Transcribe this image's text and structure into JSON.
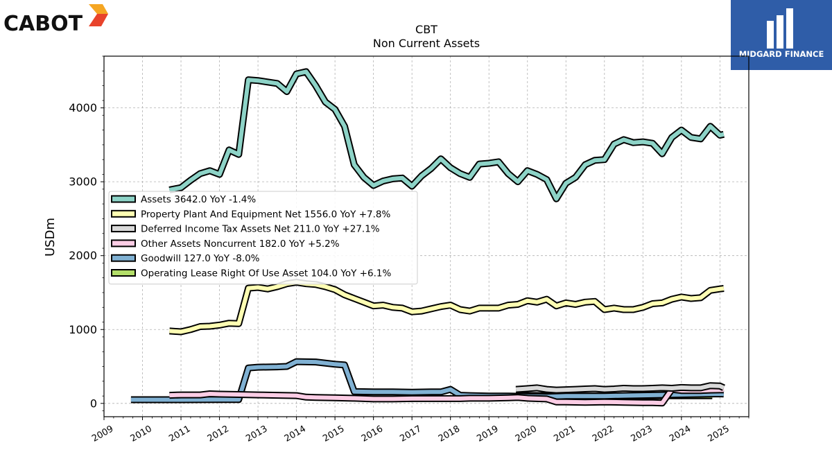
{
  "branding": {
    "left_logo_text": "CABOT",
    "right_logo_text": "MIDGARD FINANCE",
    "right_logo_color": "#2f5da8"
  },
  "chart_data": {
    "type": "line",
    "title": "CBT",
    "subtitle": "Non Current  Assets",
    "ylabel": "USDm",
    "xlabel": "",
    "xlim": [
      2009.0,
      2025.75
    ],
    "ylim": [
      -180,
      4700
    ],
    "yticks": [
      0,
      1000,
      2000,
      3000,
      4000
    ],
    "xticks": [
      "2009",
      "2010",
      "2011",
      "2012",
      "2013",
      "2014",
      "2015",
      "2016",
      "2017",
      "2018",
      "2019",
      "2020",
      "2021",
      "2022",
      "2023",
      "2024",
      "2025"
    ],
    "grid": true,
    "legend_position": "center-left",
    "series": [
      {
        "name": "Assets  3642.0 YoY -1.4%",
        "color": "#8dd3c7",
        "points": [
          [
            2010.7,
            2890
          ],
          [
            2011.0,
            2920
          ],
          [
            2011.25,
            3020
          ],
          [
            2011.5,
            3110
          ],
          [
            2011.75,
            3150
          ],
          [
            2012.0,
            3100
          ],
          [
            2012.25,
            3430
          ],
          [
            2012.5,
            3370
          ],
          [
            2012.75,
            4380
          ],
          [
            2013.0,
            4370
          ],
          [
            2013.25,
            4350
          ],
          [
            2013.5,
            4330
          ],
          [
            2013.75,
            4220
          ],
          [
            2014.0,
            4460
          ],
          [
            2014.25,
            4490
          ],
          [
            2014.5,
            4300
          ],
          [
            2014.75,
            4080
          ],
          [
            2015.0,
            3980
          ],
          [
            2015.25,
            3750
          ],
          [
            2015.5,
            3230
          ],
          [
            2015.75,
            3060
          ],
          [
            2016.0,
            2950
          ],
          [
            2016.25,
            3010
          ],
          [
            2016.5,
            3040
          ],
          [
            2016.75,
            3050
          ],
          [
            2017.0,
            2940
          ],
          [
            2017.25,
            3080
          ],
          [
            2017.5,
            3180
          ],
          [
            2017.75,
            3310
          ],
          [
            2018.0,
            3190
          ],
          [
            2018.25,
            3110
          ],
          [
            2018.5,
            3060
          ],
          [
            2018.75,
            3240
          ],
          [
            2019.0,
            3250
          ],
          [
            2019.25,
            3270
          ],
          [
            2019.5,
            3110
          ],
          [
            2019.75,
            3000
          ],
          [
            2020.0,
            3150
          ],
          [
            2020.25,
            3100
          ],
          [
            2020.5,
            3030
          ],
          [
            2020.75,
            2770
          ],
          [
            2021.0,
            2980
          ],
          [
            2021.25,
            3060
          ],
          [
            2021.5,
            3230
          ],
          [
            2021.75,
            3290
          ],
          [
            2022.0,
            3300
          ],
          [
            2022.25,
            3510
          ],
          [
            2022.5,
            3570
          ],
          [
            2022.75,
            3530
          ],
          [
            2023.0,
            3540
          ],
          [
            2023.25,
            3520
          ],
          [
            2023.5,
            3380
          ],
          [
            2023.75,
            3600
          ],
          [
            2024.0,
            3700
          ],
          [
            2024.25,
            3600
          ],
          [
            2024.5,
            3580
          ],
          [
            2024.75,
            3750
          ],
          [
            2025.0,
            3630
          ],
          [
            2025.1,
            3642
          ]
        ]
      },
      {
        "name": "Property Plant And Equipment Net  1556.0 YoY +7.8%",
        "color": "#ffffb3",
        "points": [
          [
            2010.7,
            980
          ],
          [
            2011.0,
            970
          ],
          [
            2011.25,
            1000
          ],
          [
            2011.5,
            1040
          ],
          [
            2011.75,
            1045
          ],
          [
            2012.0,
            1060
          ],
          [
            2012.25,
            1085
          ],
          [
            2012.5,
            1080
          ],
          [
            2012.75,
            1560
          ],
          [
            2013.0,
            1570
          ],
          [
            2013.25,
            1550
          ],
          [
            2013.5,
            1580
          ],
          [
            2013.75,
            1620
          ],
          [
            2014.0,
            1640
          ],
          [
            2014.25,
            1620
          ],
          [
            2014.5,
            1610
          ],
          [
            2014.75,
            1580
          ],
          [
            2015.0,
            1540
          ],
          [
            2015.25,
            1470
          ],
          [
            2015.5,
            1420
          ],
          [
            2015.75,
            1370
          ],
          [
            2016.0,
            1320
          ],
          [
            2016.25,
            1330
          ],
          [
            2016.5,
            1300
          ],
          [
            2016.75,
            1290
          ],
          [
            2017.0,
            1240
          ],
          [
            2017.25,
            1250
          ],
          [
            2017.5,
            1280
          ],
          [
            2017.75,
            1310
          ],
          [
            2018.0,
            1330
          ],
          [
            2018.25,
            1270
          ],
          [
            2018.5,
            1250
          ],
          [
            2018.75,
            1290
          ],
          [
            2019.0,
            1290
          ],
          [
            2019.25,
            1290
          ],
          [
            2019.5,
            1330
          ],
          [
            2019.75,
            1340
          ],
          [
            2020.0,
            1390
          ],
          [
            2020.25,
            1370
          ],
          [
            2020.5,
            1410
          ],
          [
            2020.75,
            1320
          ],
          [
            2021.0,
            1360
          ],
          [
            2021.25,
            1340
          ],
          [
            2021.5,
            1370
          ],
          [
            2021.75,
            1380
          ],
          [
            2022.0,
            1270
          ],
          [
            2022.25,
            1290
          ],
          [
            2022.5,
            1270
          ],
          [
            2022.75,
            1270
          ],
          [
            2023.0,
            1300
          ],
          [
            2023.25,
            1350
          ],
          [
            2023.5,
            1360
          ],
          [
            2023.75,
            1410
          ],
          [
            2024.0,
            1440
          ],
          [
            2024.25,
            1420
          ],
          [
            2024.5,
            1430
          ],
          [
            2024.75,
            1530
          ],
          [
            2025.0,
            1550
          ],
          [
            2025.1,
            1556
          ]
        ]
      },
      {
        "name": "Deferred Income Tax Assets Net  211.0 YoY +27.1%",
        "color": "#d9d9d9",
        "points": [
          [
            2019.7,
            190
          ],
          [
            2020.0,
            200
          ],
          [
            2020.25,
            210
          ],
          [
            2020.5,
            190
          ],
          [
            2020.75,
            180
          ],
          [
            2021.0,
            185
          ],
          [
            2021.25,
            190
          ],
          [
            2021.5,
            195
          ],
          [
            2021.75,
            200
          ],
          [
            2022.0,
            190
          ],
          [
            2022.25,
            195
          ],
          [
            2022.5,
            205
          ],
          [
            2022.75,
            200
          ],
          [
            2023.0,
            200
          ],
          [
            2023.25,
            205
          ],
          [
            2023.5,
            210
          ],
          [
            2023.75,
            205
          ],
          [
            2024.0,
            215
          ],
          [
            2024.25,
            210
          ],
          [
            2024.5,
            210
          ],
          [
            2024.75,
            240
          ],
          [
            2025.0,
            235
          ],
          [
            2025.1,
            211
          ]
        ]
      },
      {
        "name": "Other Assets Noncurrent  182.0 YoY +5.2%",
        "color": "#fccde5",
        "points": [
          [
            2010.7,
            110
          ],
          [
            2011.0,
            115
          ],
          [
            2011.5,
            115
          ],
          [
            2011.75,
            130
          ],
          [
            2012.0,
            125
          ],
          [
            2012.5,
            120
          ],
          [
            2013.0,
            115
          ],
          [
            2013.5,
            110
          ],
          [
            2014.0,
            105
          ],
          [
            2014.25,
            85
          ],
          [
            2014.5,
            80
          ],
          [
            2015.0,
            75
          ],
          [
            2015.5,
            70
          ],
          [
            2016.0,
            60
          ],
          [
            2016.5,
            60
          ],
          [
            2017.0,
            65
          ],
          [
            2017.5,
            65
          ],
          [
            2018.0,
            65
          ],
          [
            2018.25,
            65
          ],
          [
            2018.5,
            70
          ],
          [
            2018.75,
            70
          ],
          [
            2019.0,
            70
          ],
          [
            2019.5,
            75
          ],
          [
            2019.75,
            80
          ],
          [
            2020.0,
            70
          ],
          [
            2020.5,
            60
          ],
          [
            2020.75,
            20
          ],
          [
            2021.0,
            20
          ],
          [
            2021.5,
            15
          ],
          [
            2022.0,
            20
          ],
          [
            2022.5,
            15
          ],
          [
            2023.0,
            10
          ],
          [
            2023.25,
            10
          ],
          [
            2023.5,
            5
          ],
          [
            2023.75,
            190
          ],
          [
            2024.0,
            175
          ],
          [
            2024.5,
            175
          ],
          [
            2024.75,
            180
          ],
          [
            2025.0,
            182
          ],
          [
            2025.1,
            182
          ]
        ]
      },
      {
        "name": "Goodwill  127.0 YoY -8.0%",
        "color": "#80b1d3",
        "points": [
          [
            2009.7,
            50
          ],
          [
            2011.0,
            50
          ],
          [
            2012.0,
            52
          ],
          [
            2012.5,
            52
          ],
          [
            2012.75,
            480
          ],
          [
            2013.0,
            490
          ],
          [
            2013.5,
            495
          ],
          [
            2013.75,
            500
          ],
          [
            2014.0,
            565
          ],
          [
            2014.5,
            560
          ],
          [
            2015.0,
            530
          ],
          [
            2015.25,
            520
          ],
          [
            2015.5,
            160
          ],
          [
            2016.0,
            155
          ],
          [
            2016.5,
            155
          ],
          [
            2017.0,
            150
          ],
          [
            2017.5,
            155
          ],
          [
            2017.75,
            155
          ],
          [
            2018.0,
            190
          ],
          [
            2018.25,
            110
          ],
          [
            2018.5,
            105
          ],
          [
            2019.0,
            100
          ],
          [
            2019.5,
            100
          ],
          [
            2020.0,
            95
          ],
          [
            2020.5,
            90
          ],
          [
            2021.0,
            100
          ],
          [
            2021.5,
            100
          ],
          [
            2022.0,
            100
          ],
          [
            2022.5,
            105
          ],
          [
            2023.0,
            110
          ],
          [
            2023.5,
            115
          ],
          [
            2024.0,
            120
          ],
          [
            2024.5,
            125
          ],
          [
            2025.0,
            130
          ],
          [
            2025.1,
            127
          ]
        ]
      },
      {
        "name": "Operating Lease Right Of Use Asset  104.0 YoY +6.1%",
        "color": "#b3de69",
        "points": [
          [
            2019.7,
            110
          ],
          [
            2020.0,
            108
          ],
          [
            2020.5,
            105
          ],
          [
            2021.0,
            102
          ],
          [
            2021.5,
            100
          ],
          [
            2022.0,
            100
          ],
          [
            2022.5,
            100
          ],
          [
            2023.0,
            102
          ],
          [
            2023.5,
            103
          ],
          [
            2024.0,
            104
          ],
          [
            2024.5,
            104
          ],
          [
            2024.8,
            104
          ]
        ]
      }
    ]
  }
}
